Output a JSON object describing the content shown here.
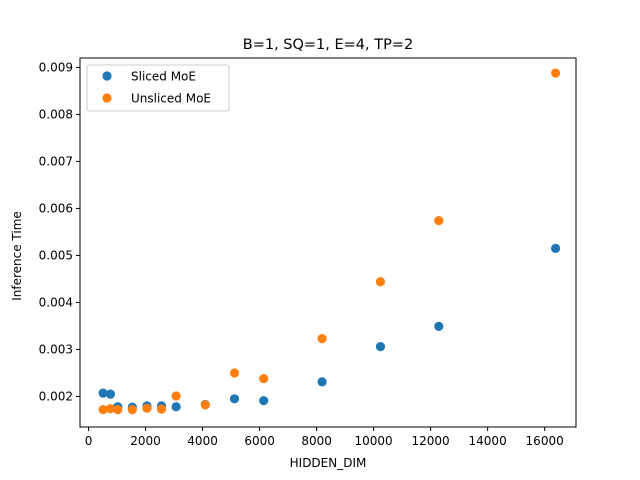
{
  "chart_data": {
    "type": "scatter",
    "title": "B=1, SQ=1, E=4, TP=2",
    "xlabel": "HIDDEN_DIM",
    "ylabel": "Inference Time",
    "xlim": [
      -300,
      17100
    ],
    "ylim": [
      0.00135,
      0.0092
    ],
    "x_ticks": [
      0,
      2000,
      4000,
      6000,
      8000,
      10000,
      12000,
      14000,
      16000
    ],
    "x_tick_labels": [
      "0",
      "2000",
      "4000",
      "6000",
      "8000",
      "10000",
      "12000",
      "14000",
      "16000"
    ],
    "y_ticks": [
      0.002,
      0.003,
      0.004,
      0.005,
      0.006,
      0.007,
      0.008,
      0.009
    ],
    "y_tick_labels": [
      "0.002",
      "0.003",
      "0.004",
      "0.005",
      "0.006",
      "0.007",
      "0.008",
      "0.009"
    ],
    "grid": false,
    "legend_position": "top-left",
    "series": [
      {
        "name": "Sliced MoE",
        "color": "#1f77b4",
        "points": [
          {
            "x": 512,
            "y": 0.00207
          },
          {
            "x": 768,
            "y": 0.00205
          },
          {
            "x": 1024,
            "y": 0.00178
          },
          {
            "x": 1536,
            "y": 0.00177
          },
          {
            "x": 2048,
            "y": 0.0018
          },
          {
            "x": 2560,
            "y": 0.0018
          },
          {
            "x": 3072,
            "y": 0.00178
          },
          {
            "x": 4096,
            "y": 0.00183
          },
          {
            "x": 5120,
            "y": 0.00195
          },
          {
            "x": 6144,
            "y": 0.00191
          },
          {
            "x": 8192,
            "y": 0.00231
          },
          {
            "x": 10240,
            "y": 0.00306
          },
          {
            "x": 12288,
            "y": 0.00349
          },
          {
            "x": 16384,
            "y": 0.00515
          }
        ]
      },
      {
        "name": "Unsliced MoE",
        "color": "#ff7f0e",
        "points": [
          {
            "x": 512,
            "y": 0.00172
          },
          {
            "x": 768,
            "y": 0.00174
          },
          {
            "x": 1024,
            "y": 0.00172
          },
          {
            "x": 1536,
            "y": 0.00172
          },
          {
            "x": 2048,
            "y": 0.00175
          },
          {
            "x": 2560,
            "y": 0.00173
          },
          {
            "x": 3072,
            "y": 0.00201
          },
          {
            "x": 4096,
            "y": 0.00182
          },
          {
            "x": 5120,
            "y": 0.0025
          },
          {
            "x": 6144,
            "y": 0.00238
          },
          {
            "x": 8192,
            "y": 0.00323
          },
          {
            "x": 10240,
            "y": 0.00444
          },
          {
            "x": 12288,
            "y": 0.00574
          },
          {
            "x": 16384,
            "y": 0.00888
          }
        ]
      }
    ]
  }
}
